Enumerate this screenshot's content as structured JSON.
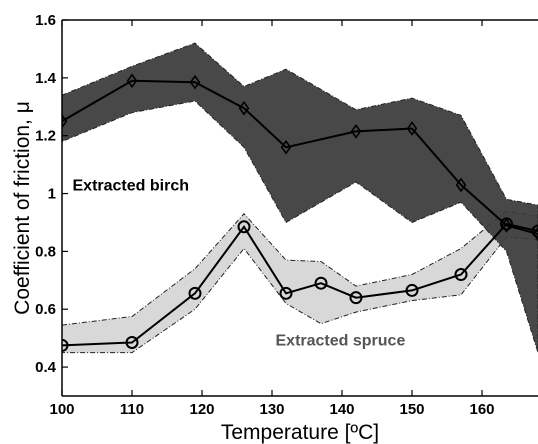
{
  "chart_data": {
    "type": "line",
    "xlabel": "Temperature [ºC]",
    "ylabel": "Coefficient of friction, μ",
    "xlim": [
      100,
      168
    ],
    "ylim": [
      0.3,
      1.6
    ],
    "xticks": [
      "100",
      "110",
      "120",
      "130",
      "140",
      "150",
      "160"
    ],
    "yticks": [
      "0.4",
      "0.6",
      "0.8",
      "1",
      "1.2",
      "1.4",
      "1.6"
    ],
    "grid": false,
    "series": [
      {
        "name": "Extracted birch",
        "marker": "diamond",
        "color": "#000000",
        "band_color": "#3a3a3a",
        "x": [
          100,
          110,
          119,
          126,
          132,
          142,
          150,
          157,
          163.5,
          168
        ],
        "y": [
          1.25,
          1.39,
          1.385,
          1.295,
          1.16,
          1.215,
          1.225,
          1.03,
          0.89,
          0.86
        ],
        "upper": [
          1.34,
          1.44,
          1.52,
          1.37,
          1.43,
          1.29,
          1.33,
          1.27,
          0.98,
          0.96
        ],
        "lower": [
          1.18,
          1.28,
          1.32,
          1.16,
          0.9,
          1.04,
          0.9,
          0.97,
          0.8,
          0.45
        ]
      },
      {
        "name": "Extracted spruce",
        "marker": "circle",
        "color": "#000000",
        "band_color": "#d4d4d4",
        "x": [
          100,
          110,
          119,
          126,
          132,
          137,
          142,
          150,
          157,
          163.5,
          168
        ],
        "y": [
          0.475,
          0.485,
          0.655,
          0.885,
          0.655,
          0.69,
          0.64,
          0.665,
          0.72,
          0.895,
          0.87
        ],
        "upper": [
          0.545,
          0.575,
          0.74,
          0.93,
          0.77,
          0.765,
          0.68,
          0.72,
          0.81,
          0.94,
          0.92
        ],
        "lower": [
          0.45,
          0.45,
          0.6,
          0.81,
          0.62,
          0.55,
          0.59,
          0.63,
          0.65,
          0.85,
          0.84
        ]
      }
    ],
    "annotations": [
      {
        "text": "Extracted birch",
        "x": 101.5,
        "y": 1.01,
        "color": "#000000"
      },
      {
        "text": "Extracted spruce",
        "x": 130.5,
        "y": 0.475,
        "color": "#555555"
      }
    ]
  }
}
